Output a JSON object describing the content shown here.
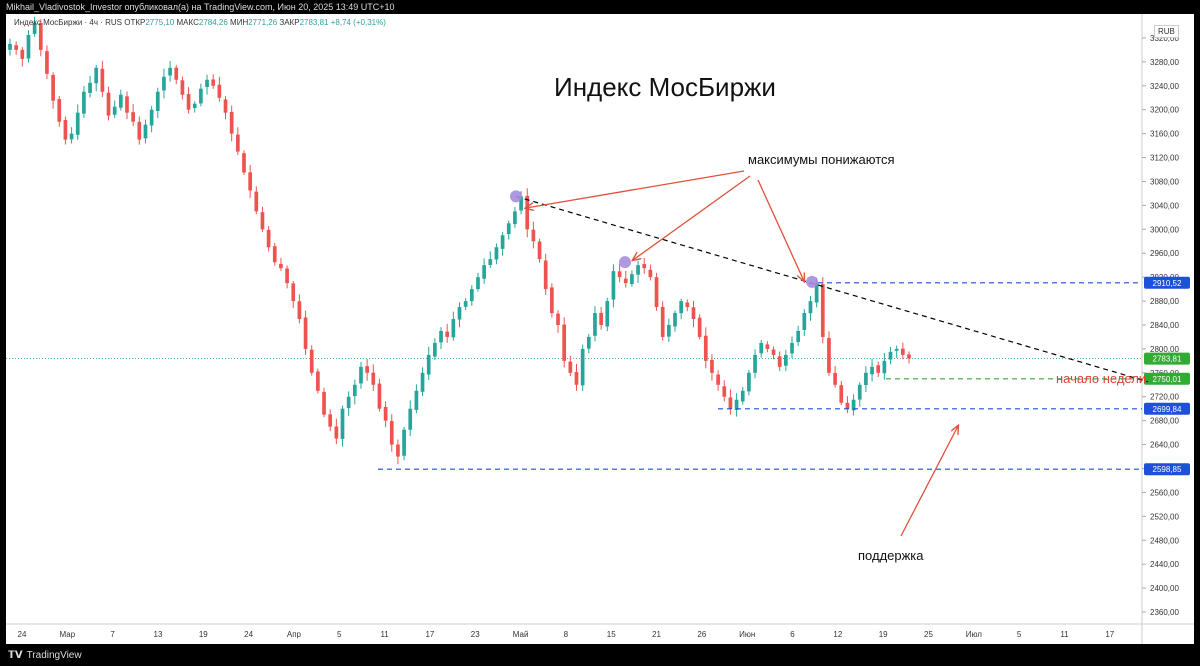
{
  "header": {
    "published_by": "Mikhail_Vladivostok_Investor опубликовал(а) на TradingView.com, Июн 20, 2025 13:49 UTC+10"
  },
  "footer": {
    "brand": "TradingView",
    "logo_icon": "tradingview-logo-icon"
  },
  "legend": {
    "symbol": "Индекс МосБиржи · 4ч · RUS",
    "open_label": "ОТКР",
    "open_value": "2775,10",
    "high_label": "МАКС",
    "high_value": "2784,26",
    "low_label": "МИН",
    "low_value": "2771,26",
    "close_label": "ЗАКР",
    "close_value": "2783,81",
    "change": "+8,74 (+0,31%)"
  },
  "currency": "RUB",
  "title": "Индекс МосБиржи",
  "annotations": {
    "highs_falling": "максимумы понижаются",
    "support": "поддержка",
    "week_start": "начало недели"
  },
  "colors": {
    "up": "#26a69a",
    "down": "#ef5350",
    "level_line": "#1e50dc",
    "green_level": "#33aa33",
    "arrow": "#e0503c",
    "marker": "#a58ddc",
    "trend": "#000000"
  },
  "chart_data": {
    "type": "candlestick",
    "ylim": [
      2340,
      3360
    ],
    "y_ticks": [
      "3320,00",
      "3280,00",
      "3240,00",
      "3200,00",
      "3160,00",
      "3120,00",
      "3080,00",
      "3040,00",
      "3000,00",
      "2960,00",
      "2920,00",
      "2880,00",
      "2840,00",
      "2800,00",
      "2760,00",
      "2720,00",
      "2680,00",
      "2640,00",
      "2600,00",
      "2560,00",
      "2520,00",
      "2480,00",
      "2440,00",
      "2400,00",
      "2360,00"
    ],
    "x_ticks": [
      "24",
      "Мар",
      "7",
      "13",
      "19",
      "24",
      "Апр",
      "5",
      "11",
      "17",
      "23",
      "Май",
      "8",
      "15",
      "21",
      "26",
      "Июн",
      "6",
      "12",
      "19",
      "25",
      "Июл",
      "5",
      "11",
      "17"
    ],
    "levels": [
      {
        "label": "2910,52",
        "value": 2910.52,
        "style": "blue"
      },
      {
        "label": "2783,81",
        "value": 2783.81,
        "style": "green-current"
      },
      {
        "label": "2750,01",
        "value": 2750.01,
        "style": "green"
      },
      {
        "label": "2699,84",
        "value": 2699.84,
        "style": "blue"
      },
      {
        "label": "2598,85",
        "value": 2598.85,
        "style": "blue"
      }
    ],
    "trendline": {
      "from": {
        "x": "Апр 28",
        "y": 3055
      },
      "to": {
        "x": "Июл 20",
        "y": 2745
      }
    },
    "markers": [
      {
        "x": "Апр 28",
        "y": 3055
      },
      {
        "x": "Май 14",
        "y": 2945
      },
      {
        "x": "Июн 6",
        "y": 2912
      }
    ],
    "closes": [
      3310,
      3300,
      3285,
      3325,
      3345,
      3300,
      3260,
      3215,
      3180,
      3150,
      3160,
      3195,
      3230,
      3245,
      3270,
      3230,
      3190,
      3205,
      3225,
      3195,
      3180,
      3150,
      3175,
      3200,
      3230,
      3255,
      3270,
      3250,
      3225,
      3200,
      3210,
      3235,
      3250,
      3240,
      3220,
      3195,
      3160,
      3130,
      3095,
      3065,
      3030,
      3000,
      2970,
      2945,
      2935,
      2910,
      2880,
      2850,
      2800,
      2760,
      2730,
      2690,
      2670,
      2650,
      2700,
      2720,
      2740,
      2770,
      2760,
      2740,
      2700,
      2680,
      2640,
      2620,
      2665,
      2700,
      2730,
      2760,
      2790,
      2810,
      2830,
      2820,
      2850,
      2870,
      2880,
      2900,
      2920,
      2940,
      2950,
      2970,
      2990,
      3010,
      3030,
      3055,
      3000,
      2980,
      2950,
      2900,
      2860,
      2840,
      2780,
      2760,
      2740,
      2800,
      2820,
      2860,
      2840,
      2880,
      2930,
      2920,
      2910,
      2925,
      2940,
      2935,
      2920,
      2870,
      2820,
      2840,
      2860,
      2880,
      2870,
      2850,
      2820,
      2780,
      2760,
      2740,
      2720,
      2700,
      2715,
      2730,
      2760,
      2790,
      2810,
      2800,
      2790,
      2770,
      2790,
      2810,
      2830,
      2860,
      2880,
      2910,
      2820,
      2760,
      2740,
      2710,
      2700,
      2715,
      2740,
      2760,
      2770,
      2760,
      2780,
      2795,
      2800,
      2790,
      2784
    ],
    "first_date": "Фев 24",
    "last_date": "Июн 20"
  }
}
